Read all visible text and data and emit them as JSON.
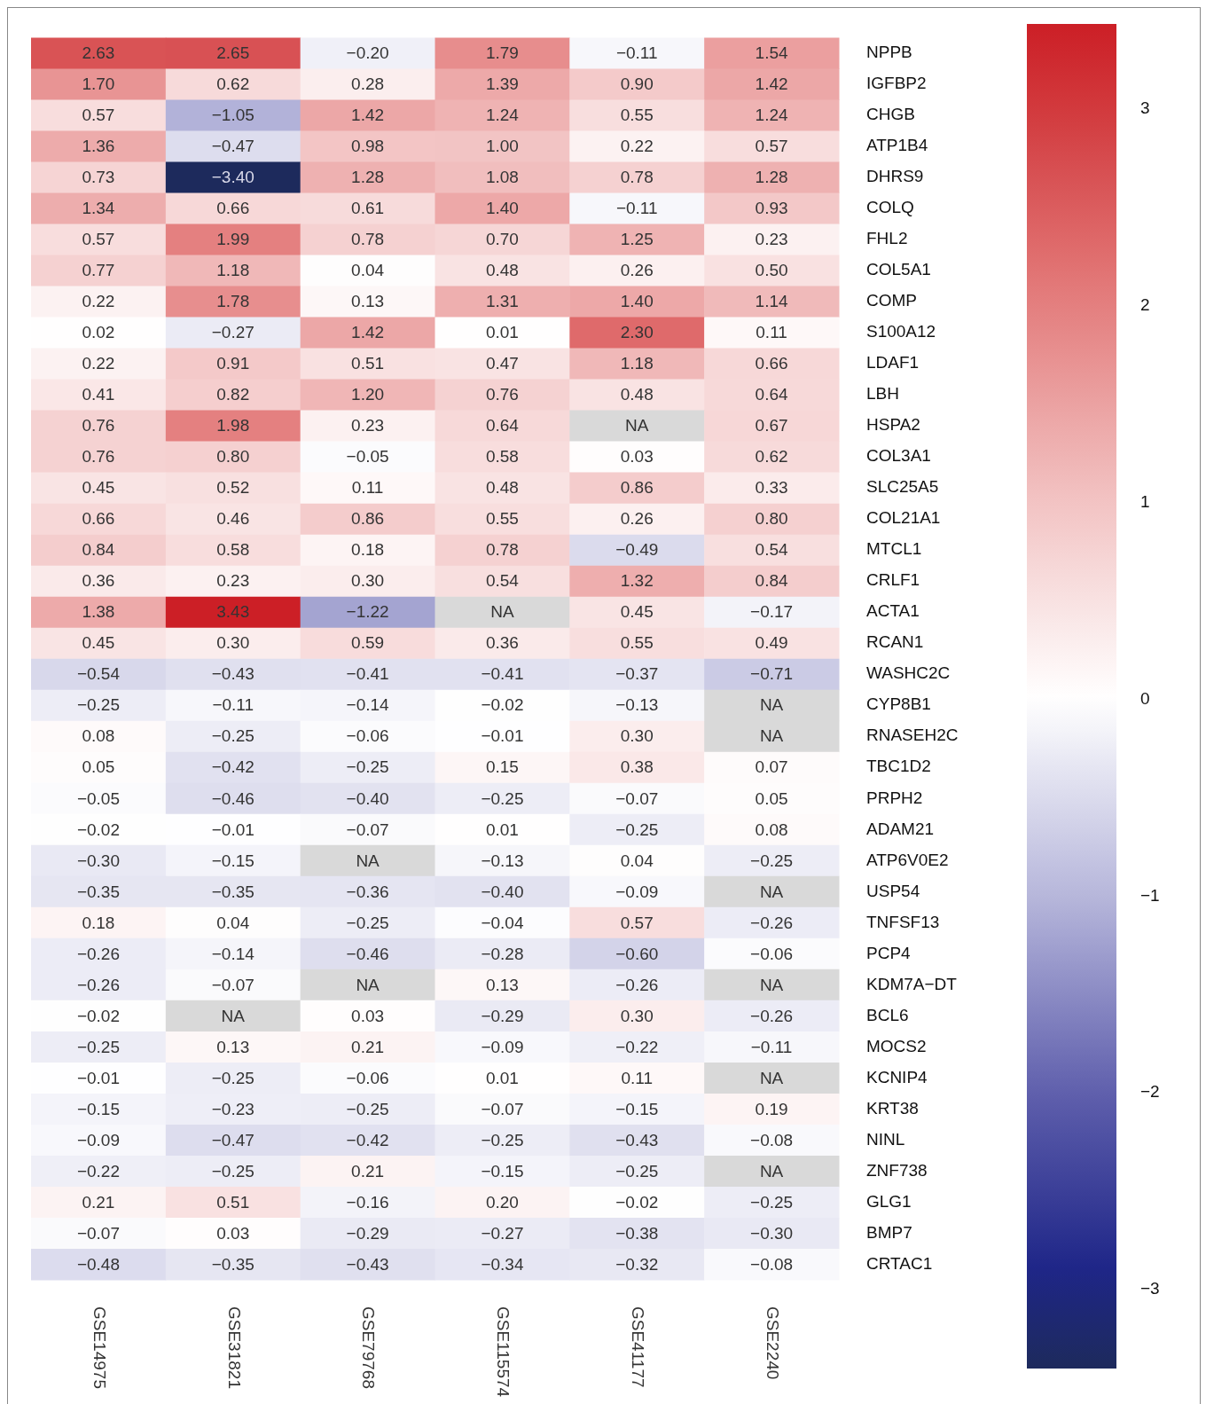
{
  "chart_data": {
    "type": "heatmap",
    "categories": [
      "GSE14975",
      "GSE31821",
      "GSE79768",
      "GSE115574",
      "GSE41177",
      "GSE2240"
    ],
    "y_categories": [
      "NPPB",
      "IGFBP2",
      "CHGB",
      "ATP1B4",
      "DHRS9",
      "COLQ",
      "FHL2",
      "COL5A1",
      "COMP",
      "S100A12",
      "LDAF1",
      "LBH",
      "HSPA2",
      "COL3A1",
      "SLC25A5",
      "COL21A1",
      "MTCL1",
      "CRLF1",
      "ACTA1",
      "RCAN1",
      "WASHC2C",
      "CYP8B1",
      "RNASEH2C",
      "TBC1D2",
      "PRPH2",
      "ADAM21",
      "ATP6V0E2",
      "USP54",
      "TNFSF13",
      "PCP4",
      "KDM7A−DT",
      "BCL6",
      "MOCS2",
      "KCNIP4",
      "KRT38",
      "NINL",
      "ZNF738",
      "GLG1",
      "BMP7",
      "CRTAC1"
    ],
    "cells": [
      [
        2.63,
        2.65,
        -0.2,
        1.79,
        -0.11,
        1.54
      ],
      [
        1.7,
        0.62,
        0.28,
        1.39,
        0.9,
        1.42
      ],
      [
        0.57,
        -1.05,
        1.42,
        1.24,
        0.55,
        1.24
      ],
      [
        1.36,
        -0.47,
        0.98,
        1.0,
        0.22,
        0.57
      ],
      [
        0.73,
        -3.4,
        1.28,
        1.08,
        0.78,
        1.28
      ],
      [
        1.34,
        0.66,
        0.61,
        1.4,
        -0.11,
        0.93
      ],
      [
        0.57,
        1.99,
        0.78,
        0.7,
        1.25,
        0.23
      ],
      [
        0.77,
        1.18,
        0.04,
        0.48,
        0.26,
        0.5
      ],
      [
        0.22,
        1.78,
        0.13,
        1.31,
        1.4,
        1.14
      ],
      [
        0.02,
        -0.27,
        1.42,
        0.01,
        2.3,
        0.11
      ],
      [
        0.22,
        0.91,
        0.51,
        0.47,
        1.18,
        0.66
      ],
      [
        0.41,
        0.82,
        1.2,
        0.76,
        0.48,
        0.64
      ],
      [
        0.76,
        1.98,
        0.23,
        0.64,
        null,
        0.67
      ],
      [
        0.76,
        0.8,
        -0.05,
        0.58,
        0.03,
        0.62
      ],
      [
        0.45,
        0.52,
        0.11,
        0.48,
        0.86,
        0.33
      ],
      [
        0.66,
        0.46,
        0.86,
        0.55,
        0.26,
        0.8
      ],
      [
        0.84,
        0.58,
        0.18,
        0.78,
        -0.49,
        0.54
      ],
      [
        0.36,
        0.23,
        0.3,
        0.54,
        1.32,
        0.84
      ],
      [
        1.38,
        3.43,
        -1.22,
        null,
        0.45,
        -0.17
      ],
      [
        0.45,
        0.3,
        0.59,
        0.36,
        0.55,
        0.49
      ],
      [
        -0.54,
        -0.43,
        -0.41,
        -0.41,
        -0.37,
        -0.71
      ],
      [
        -0.25,
        -0.11,
        -0.14,
        -0.02,
        -0.13,
        null
      ],
      [
        0.08,
        -0.25,
        -0.06,
        -0.01,
        0.3,
        null
      ],
      [
        0.05,
        -0.42,
        -0.25,
        0.15,
        0.38,
        0.07
      ],
      [
        -0.05,
        -0.46,
        -0.4,
        -0.25,
        -0.07,
        0.05
      ],
      [
        -0.02,
        -0.01,
        -0.07,
        0.01,
        -0.25,
        0.08
      ],
      [
        -0.3,
        -0.15,
        null,
        -0.13,
        0.04,
        -0.25
      ],
      [
        -0.35,
        -0.35,
        -0.36,
        -0.4,
        -0.09,
        null
      ],
      [
        0.18,
        0.04,
        -0.25,
        -0.04,
        0.57,
        -0.26
      ],
      [
        -0.26,
        -0.14,
        -0.46,
        -0.28,
        -0.6,
        -0.06
      ],
      [
        -0.26,
        -0.07,
        null,
        0.13,
        -0.26,
        null
      ],
      [
        -0.02,
        null,
        0.03,
        -0.29,
        0.3,
        -0.26
      ],
      [
        -0.25,
        0.13,
        0.21,
        -0.09,
        -0.22,
        -0.11
      ],
      [
        -0.01,
        -0.25,
        -0.06,
        0.01,
        0.11,
        null
      ],
      [
        -0.15,
        -0.23,
        -0.25,
        -0.07,
        -0.15,
        0.19
      ],
      [
        -0.09,
        -0.47,
        -0.42,
        -0.25,
        -0.43,
        -0.08
      ],
      [
        -0.22,
        -0.25,
        0.21,
        -0.15,
        -0.25,
        null
      ],
      [
        0.21,
        0.51,
        -0.16,
        0.2,
        -0.02,
        -0.25
      ],
      [
        -0.07,
        0.03,
        -0.29,
        -0.27,
        -0.38,
        -0.3
      ],
      [
        -0.48,
        -0.35,
        -0.43,
        -0.34,
        -0.32,
        -0.08
      ]
    ],
    "cell_labels": [
      [
        "2.63",
        "2.65",
        "−0.20",
        "1.79",
        "−0.11",
        "1.54"
      ],
      [
        "1.70",
        "0.62",
        "0.28",
        "1.39",
        "0.90",
        "1.42"
      ],
      [
        "0.57",
        "−1.05",
        "1.42",
        "1.24",
        "0.55",
        "1.24"
      ],
      [
        "1.36",
        "−0.47",
        "0.98",
        "1.00",
        "0.22",
        "0.57"
      ],
      [
        "0.73",
        "−3.40",
        "1.28",
        "1.08",
        "0.78",
        "1.28"
      ],
      [
        "1.34",
        "0.66",
        "0.61",
        "1.40",
        "−0.11",
        "0.93"
      ],
      [
        "0.57",
        "1.99",
        "0.78",
        "0.70",
        "1.25",
        "0.23"
      ],
      [
        "0.77",
        "1.18",
        "0.04",
        "0.48",
        "0.26",
        "0.50"
      ],
      [
        "0.22",
        "1.78",
        "0.13",
        "1.31",
        "1.40",
        "1.14"
      ],
      [
        "0.02",
        "−0.27",
        "1.42",
        "0.01",
        "2.30",
        "0.11"
      ],
      [
        "0.22",
        "0.91",
        "0.51",
        "0.47",
        "1.18",
        "0.66"
      ],
      [
        "0.41",
        "0.82",
        "1.20",
        "0.76",
        "0.48",
        "0.64"
      ],
      [
        "0.76",
        "1.98",
        "0.23",
        "0.64",
        "NA",
        "0.67"
      ],
      [
        "0.76",
        "0.80",
        "−0.05",
        "0.58",
        "0.03",
        "0.62"
      ],
      [
        "0.45",
        "0.52",
        "0.11",
        "0.48",
        "0.86",
        "0.33"
      ],
      [
        "0.66",
        "0.46",
        "0.86",
        "0.55",
        "0.26",
        "0.80"
      ],
      [
        "0.84",
        "0.58",
        "0.18",
        "0.78",
        "−0.49",
        "0.54"
      ],
      [
        "0.36",
        "0.23",
        "0.30",
        "0.54",
        "1.32",
        "0.84"
      ],
      [
        "1.38",
        "3.43",
        "−1.22",
        "NA",
        "0.45",
        "−0.17"
      ],
      [
        "0.45",
        "0.30",
        "0.59",
        "0.36",
        "0.55",
        "0.49"
      ],
      [
        "−0.54",
        "−0.43",
        "−0.41",
        "−0.41",
        "−0.37",
        "−0.71"
      ],
      [
        "−0.25",
        "−0.11",
        "−0.14",
        "−0.02",
        "−0.13",
        "NA"
      ],
      [
        "0.08",
        "−0.25",
        "−0.06",
        "−0.01",
        "0.30",
        "NA"
      ],
      [
        "0.05",
        "−0.42",
        "−0.25",
        "0.15",
        "0.38",
        "0.07"
      ],
      [
        "−0.05",
        "−0.46",
        "−0.40",
        "−0.25",
        "−0.07",
        "0.05"
      ],
      [
        "−0.02",
        "−0.01",
        "−0.07",
        "0.01",
        "−0.25",
        "0.08"
      ],
      [
        "−0.30",
        "−0.15",
        "NA",
        "−0.13",
        "0.04",
        "−0.25"
      ],
      [
        "−0.35",
        "−0.35",
        "−0.36",
        "−0.40",
        "−0.09",
        "NA"
      ],
      [
        "0.18",
        "0.04",
        "−0.25",
        "−0.04",
        "0.57",
        "−0.26"
      ],
      [
        "−0.26",
        "−0.14",
        "−0.46",
        "−0.28",
        "−0.60",
        "−0.06"
      ],
      [
        "−0.26",
        "−0.07",
        "NA",
        "0.13",
        "−0.26",
        "NA"
      ],
      [
        "−0.02",
        "NA",
        "0.03",
        "−0.29",
        "0.30",
        "−0.26"
      ],
      [
        "−0.25",
        "0.13",
        "0.21",
        "−0.09",
        "−0.22",
        "−0.11"
      ],
      [
        "−0.01",
        "−0.25",
        "−0.06",
        "0.01",
        "0.11",
        "NA"
      ],
      [
        "−0.15",
        "−0.23",
        "−0.25",
        "−0.07",
        "−0.15",
        "0.19"
      ],
      [
        "−0.09",
        "−0.47",
        "−0.42",
        "−0.25",
        "−0.43",
        "−0.08"
      ],
      [
        "−0.22",
        "−0.25",
        "0.21",
        "−0.15",
        "−0.25",
        "NA"
      ],
      [
        "0.21",
        "0.51",
        "−0.16",
        "0.20",
        "−0.02",
        "−0.25"
      ],
      [
        "−0.07",
        "0.03",
        "−0.29",
        "−0.27",
        "−0.38",
        "−0.30"
      ],
      [
        "−0.48",
        "−0.35",
        "−0.43",
        "−0.34",
        "−0.32",
        "−0.08"
      ]
    ],
    "clim": [
      -3.4,
      3.43
    ],
    "cticks": [
      {
        "value": -3,
        "label": "−3"
      },
      {
        "value": -2,
        "label": "−2"
      },
      {
        "value": -1,
        "label": "−1"
      },
      0,
      1,
      2,
      3
    ]
  }
}
